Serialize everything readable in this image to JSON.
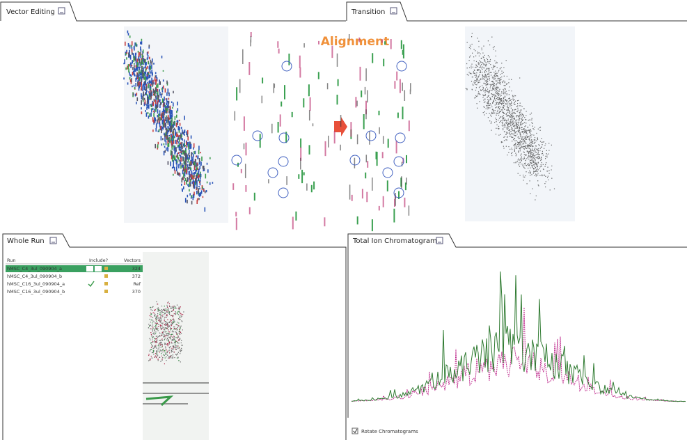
{
  "vector_editing": {
    "title": "Vector Editing"
  },
  "alignment_label": "Alignment",
  "transition": {
    "title": "Transition"
  },
  "whole_run": {
    "title": "Whole Run",
    "table": {
      "headers": [
        "Run",
        "Include?",
        "Vectors"
      ],
      "rows": [
        [
          "hMSC_C4_3ul_090904_a",
          324
        ],
        [
          "hMSC_C4_3ul_090904_b",
          372
        ],
        [
          "hMSC_C16_3ul_090904_a",
          "Ref"
        ],
        [
          "hMSC_C16_3ul_090904_b",
          370
        ]
      ]
    }
  },
  "tic": {
    "title": "Total Ion Chromatograms",
    "rotate_label": "Rotate Chromatograms"
  }
}
